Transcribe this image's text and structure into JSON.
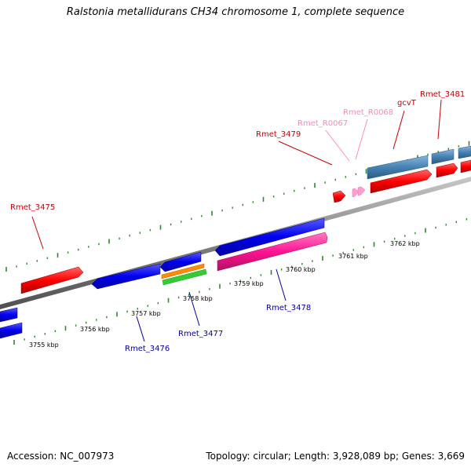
{
  "title": "Ralstonia metallidurans CH34 chromosome 1, complete sequence",
  "footer": {
    "accession": "Accession: NC_007973",
    "topology": "Topology: circular; Length: 3,928,089 bp; Genes: 3,669"
  },
  "scale": {
    "ticks": [
      "3755 kbp",
      "3756 kbp",
      "3757 kbp",
      "3758 kbp",
      "3759 kbp",
      "3760 kbp",
      "3761 kbp",
      "3762 kbp"
    ]
  },
  "genes": {
    "Rmet_3475": "Rmet_3475",
    "Rmet_3476": "Rmet_3476",
    "Rmet_3477": "Rmet_3477",
    "Rmet_3478": "Rmet_3478",
    "Rmet_3479": "Rmet_3479",
    "Rmet_R0067": "Rmet_R0067",
    "Rmet_R0068": "Rmet_R0068",
    "gcvT": "gcvT",
    "Rmet_3481": "Rmet_3481"
  },
  "colors": {
    "backbone": "#808080",
    "forward_cds": "#ff0000",
    "reverse_cds": "#0000ee",
    "pink_gene": "#ff1493",
    "rna": "#ff9ecf",
    "steelblue_gene": "#4682b4",
    "orange_gene": "#ff8c00",
    "green_gene": "#33cc33",
    "tick": "#2e8b2e",
    "label_forward": "#cc0000",
    "label_reverse": "#0000aa",
    "label_rna": "#ff88bb"
  }
}
